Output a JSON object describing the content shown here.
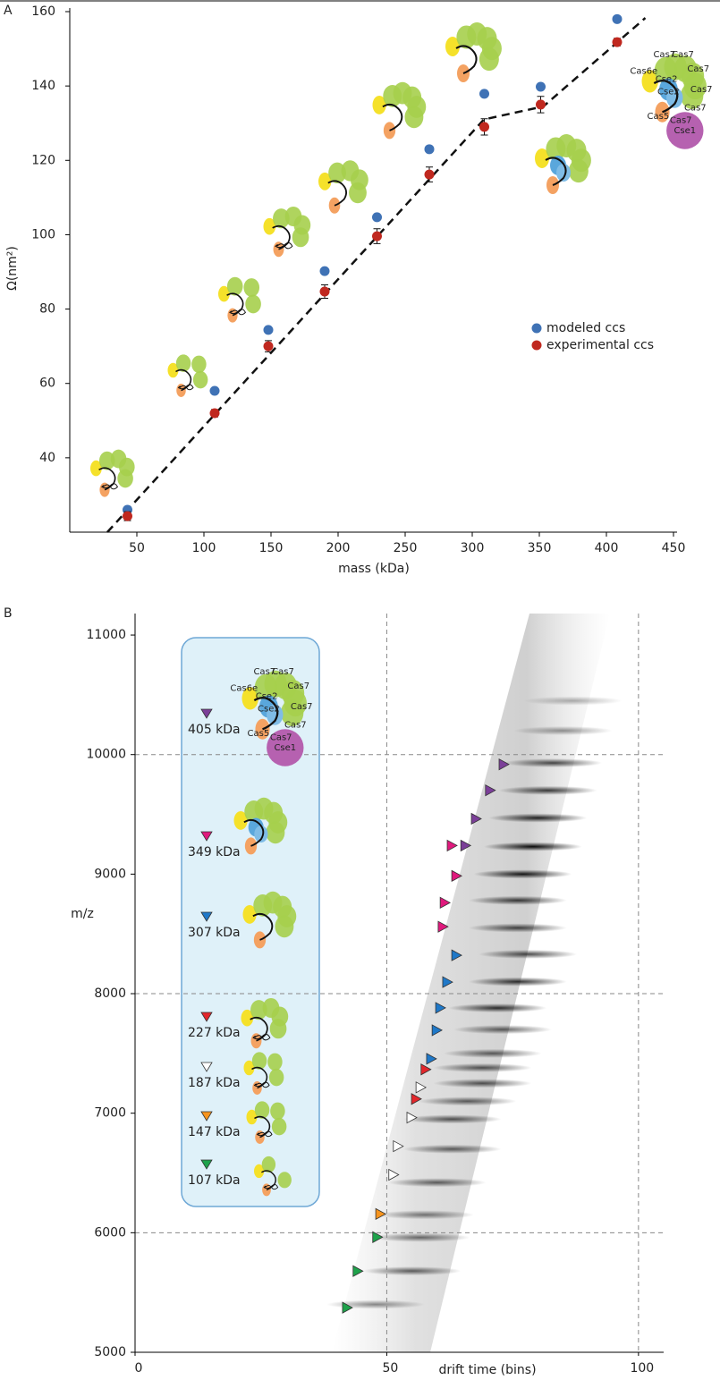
{
  "chart_data": [
    {
      "type": "scatter",
      "panel_label": "A",
      "xlabel": "mass (kDa)",
      "ylabel": "Ω(nm²)",
      "xlim": [
        0,
        450
      ],
      "ylim": [
        20,
        160
      ],
      "xticks": [
        50,
        100,
        150,
        200,
        250,
        300,
        350,
        400,
        450
      ],
      "yticks": [
        40,
        60,
        80,
        100,
        120,
        140,
        160
      ],
      "legend": "right",
      "series": [
        {
          "name": "modeled ccs",
          "color": "#3f72b5",
          "x": [
            43,
            108,
            148,
            190,
            229,
            268,
            309,
            351,
            408
          ],
          "y": [
            26,
            58,
            74.4,
            90.2,
            104.7,
            123,
            137.9,
            139.8,
            158
          ]
        },
        {
          "name": "experimental ccs",
          "color": "#c0281f",
          "x": [
            43,
            108,
            148,
            190,
            229,
            268,
            309,
            351,
            408
          ],
          "y": [
            24.3,
            52,
            70,
            84.7,
            99.6,
            116.2,
            129,
            135,
            151.8
          ],
          "errors": [
            1.2,
            1,
            1.5,
            1.8,
            2,
            2,
            2.2,
            2.2,
            1
          ]
        }
      ],
      "fit_line": {
        "x": [
          28,
          308.7,
          353,
          429
        ],
        "y": [
          20,
          131,
          134.5,
          158.3
        ]
      },
      "complex_labels": [
        "Cas6e",
        "Cas7",
        "Cas7",
        "Cas7",
        "Cas7",
        "Cas7",
        "Cas7",
        "Cse2",
        "Cse2",
        "Cas5",
        "Cse1"
      ]
    },
    {
      "type": "heatmap",
      "panel_label": "B",
      "xlabel": "drift time (bins)",
      "ylabel": "m/z",
      "xlim": [
        0,
        105
      ],
      "ylim": [
        5000,
        11180
      ],
      "xticks": [
        0,
        50,
        100
      ],
      "yticks": [
        5000,
        6000,
        7000,
        8000,
        9000,
        10000,
        11000
      ],
      "grid_lines": {
        "x": [
          50,
          100
        ],
        "y": [
          6000,
          8000,
          10000
        ]
      },
      "peaks": {
        "mz": [
          5400,
          5680,
          5960,
          6150,
          6420,
          6700,
          6950,
          7100,
          7250,
          7380,
          7500,
          7700,
          7880,
          8100,
          8330,
          8550,
          8780,
          9000,
          9230,
          9470,
          9700,
          9930,
          10200,
          10450
        ],
        "drift": [
          47.8,
          55,
          56.7,
          57.6,
          60,
          63,
          63,
          66,
          69,
          69,
          71,
          73,
          72,
          76,
          78,
          76,
          76,
          77,
          79,
          80,
          82,
          83,
          85,
          87
        ],
        "intensity": [
          0.45,
          0.6,
          0.55,
          0.5,
          0.6,
          0.6,
          0.65,
          0.6,
          0.65,
          0.65,
          0.6,
          0.6,
          0.8,
          0.8,
          0.7,
          0.7,
          0.75,
          0.9,
          0.95,
          0.85,
          0.75,
          0.7,
          0.4,
          0.3
        ]
      },
      "species": [
        {
          "label": "405 kDa",
          "color": "#7b3f98"
        },
        {
          "label": "349 kDa",
          "color": "#e0197d"
        },
        {
          "label": "307 kDa",
          "color": "#1f78c8"
        },
        {
          "label": "227 kDa",
          "color": "#e3262b"
        },
        {
          "label": "187 kDa",
          "color": "#ffffff"
        },
        {
          "label": "147 kDa",
          "color": "#f7941d"
        },
        {
          "label": "107 kDa",
          "color": "#1ea24b"
        }
      ],
      "markers": {
        "species": [
          6,
          6,
          6,
          5,
          4,
          4,
          4,
          4,
          3,
          3,
          2,
          2,
          2,
          2,
          2,
          1,
          1,
          1,
          1,
          0,
          0,
          0,
          0
        ],
        "mz": [
          5373,
          5679,
          5963,
          6157,
          6485,
          6724,
          6963,
          7216,
          7119,
          7366,
          7455,
          7694,
          7881,
          8097,
          8321,
          8560,
          8761,
          8985,
          9239,
          9239,
          9463,
          9701,
          9918
        ],
        "drift": [
          42.1,
          44.2,
          48.1,
          48.7,
          51.3,
          52.2,
          54.9,
          56.7,
          55.8,
          57.7,
          58.8,
          59.9,
          60.6,
          62,
          63.8,
          61.1,
          61.5,
          63.8,
          62.9,
          65.6,
          67.7,
          70.5,
          73.2
        ]
      },
      "complex_labels": [
        "Cas6e",
        "Cas7",
        "Cas7",
        "Cas7",
        "Cas7",
        "Cas7",
        "Cas7",
        "Cse2",
        "Cse2",
        "Cas5",
        "Cse1"
      ]
    }
  ]
}
